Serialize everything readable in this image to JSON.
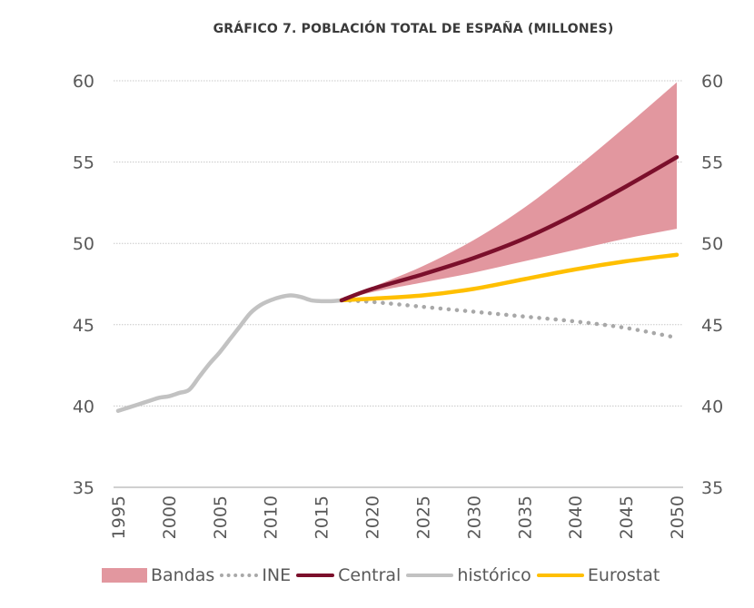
{
  "chart_data": {
    "type": "line",
    "title": "GRÁFICO 7. POBLACIÓN TOTAL DE ESPAÑA (MILLONES)",
    "xlabel": "",
    "ylabel": "",
    "xlim": [
      1995,
      2050
    ],
    "ylim": [
      35,
      60
    ],
    "x_ticks": [
      1995,
      2000,
      2005,
      2010,
      2015,
      2020,
      2025,
      2030,
      2035,
      2040,
      2045,
      2050
    ],
    "y_ticks": [
      35,
      40,
      45,
      50,
      55,
      60
    ],
    "grid": "horizontal-dotted",
    "secondary_y_axis": true,
    "legend_position": "bottom",
    "series": [
      {
        "name": "histórico",
        "style": "solid",
        "color": "#c2c2c2",
        "points": [
          [
            1995,
            39.7
          ],
          [
            1996,
            39.9
          ],
          [
            1997,
            40.1
          ],
          [
            1998,
            40.3
          ],
          [
            1999,
            40.5
          ],
          [
            2000,
            40.6
          ],
          [
            2001,
            40.8
          ],
          [
            2002,
            41.0
          ],
          [
            2003,
            41.8
          ],
          [
            2004,
            42.6
          ],
          [
            2005,
            43.3
          ],
          [
            2006,
            44.1
          ],
          [
            2007,
            44.9
          ],
          [
            2008,
            45.7
          ],
          [
            2009,
            46.2
          ],
          [
            2010,
            46.5
          ],
          [
            2011,
            46.7
          ],
          [
            2012,
            46.8
          ],
          [
            2013,
            46.7
          ],
          [
            2014,
            46.5
          ],
          [
            2015,
            46.45
          ],
          [
            2016,
            46.45
          ],
          [
            2017,
            46.5
          ]
        ]
      },
      {
        "name": "INE",
        "style": "dotted",
        "color": "#a8a8a8",
        "points": [
          [
            2017,
            46.5
          ],
          [
            2020,
            46.4
          ],
          [
            2025,
            46.1
          ],
          [
            2030,
            45.8
          ],
          [
            2035,
            45.5
          ],
          [
            2040,
            45.2
          ],
          [
            2045,
            44.8
          ],
          [
            2050,
            44.2
          ]
        ]
      },
      {
        "name": "Central",
        "style": "solid",
        "color": "#7b0f2b",
        "points": [
          [
            2017,
            46.5
          ],
          [
            2020,
            47.2
          ],
          [
            2025,
            48.1
          ],
          [
            2030,
            49.1
          ],
          [
            2035,
            50.3
          ],
          [
            2040,
            51.8
          ],
          [
            2045,
            53.5
          ],
          [
            2050,
            55.3
          ]
        ]
      },
      {
        "name": "Eurostat",
        "style": "solid",
        "color": "#ffbf00",
        "points": [
          [
            2017,
            46.5
          ],
          [
            2020,
            46.6
          ],
          [
            2025,
            46.8
          ],
          [
            2030,
            47.2
          ],
          [
            2035,
            47.8
          ],
          [
            2040,
            48.4
          ],
          [
            2045,
            48.9
          ],
          [
            2050,
            49.3
          ]
        ]
      }
    ],
    "band": {
      "name": "Bandas",
      "color": "#e2979f",
      "upper": [
        [
          2017,
          46.5
        ],
        [
          2020,
          47.3
        ],
        [
          2025,
          48.6
        ],
        [
          2030,
          50.2
        ],
        [
          2035,
          52.2
        ],
        [
          2040,
          54.6
        ],
        [
          2045,
          57.2
        ],
        [
          2050,
          59.9
        ]
      ],
      "lower": [
        [
          2017,
          46.5
        ],
        [
          2020,
          47.0
        ],
        [
          2025,
          47.6
        ],
        [
          2030,
          48.2
        ],
        [
          2035,
          48.9
        ],
        [
          2040,
          49.6
        ],
        [
          2045,
          50.3
        ],
        [
          2050,
          50.9
        ]
      ]
    },
    "legend": [
      {
        "key": "band",
        "label": "Bandas"
      },
      {
        "key": "ine",
        "label": "INE"
      },
      {
        "key": "central",
        "label": "Central"
      },
      {
        "key": "hist",
        "label": "histórico"
      },
      {
        "key": "euro",
        "label": "Eurostat"
      }
    ]
  }
}
